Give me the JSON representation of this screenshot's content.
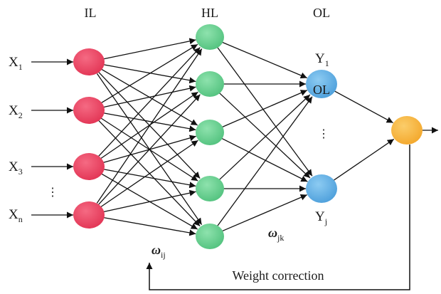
{
  "layers": {
    "input": "IL",
    "hidden": "HL",
    "output": "OL"
  },
  "inputs": [
    {
      "base": "X",
      "sub": "1"
    },
    {
      "base": "X",
      "sub": "2"
    },
    {
      "base": "X",
      "sub": "3"
    },
    {
      "base": "X",
      "sub": "n"
    }
  ],
  "outputs": [
    {
      "base": "Y",
      "sub": "1"
    },
    {
      "base": "Y",
      "sub": "j"
    }
  ],
  "input_ellipsis": "⋮",
  "output_ellipsis": "⋮",
  "weights": {
    "input_hidden": {
      "base": "ω",
      "sub": "ij"
    },
    "hidden_output": {
      "base": "ω",
      "sub": "jk"
    }
  },
  "feedback_label": "Weight correction",
  "colors": {
    "input_node": "#e8405e",
    "hidden_node": "#66d08e",
    "output_node": "#62aee3",
    "final_node": "#f7b43a",
    "edge": "#111111"
  }
}
